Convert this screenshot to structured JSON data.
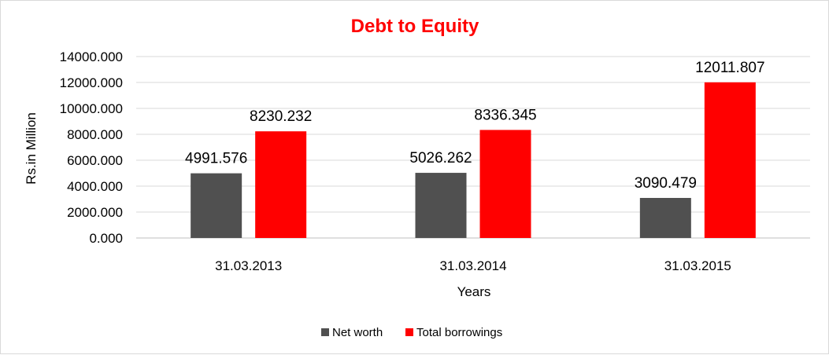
{
  "chart_data": {
    "type": "bar",
    "title": "Debt to Equity",
    "title_color": "#ff0000",
    "xlabel": "Years",
    "ylabel": "Rs.in Million",
    "categories": [
      "31.03.2013",
      "31.03.2014",
      "31.03.2015"
    ],
    "series": [
      {
        "name": "Net worth",
        "color": "#505050",
        "values": [
          4991.576,
          5026.262,
          3090.479
        ],
        "labels": [
          "4991.576",
          "5026.262",
          "3090.479"
        ]
      },
      {
        "name": "Total borrowings",
        "color": "#ff0000",
        "values": [
          8230.232,
          8336.345,
          12011.807
        ],
        "labels": [
          "8230.232",
          "8336.345",
          "12011.807"
        ]
      }
    ],
    "ylim": [
      0,
      14000
    ],
    "yticks": [
      0,
      2000,
      4000,
      6000,
      8000,
      10000,
      12000,
      14000
    ],
    "ytick_labels": [
      "0.000",
      "2000.000",
      "4000.000",
      "6000.000",
      "8000.000",
      "10000.000",
      "12000.000",
      "14000.000"
    ],
    "grid": true,
    "legend_position": "bottom"
  }
}
